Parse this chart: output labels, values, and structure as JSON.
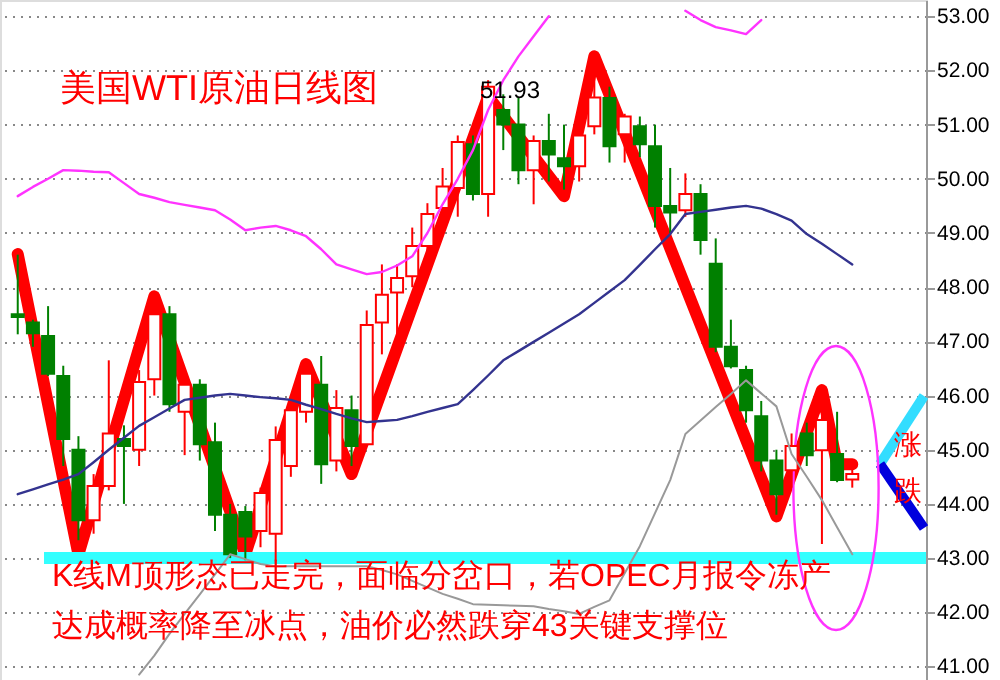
{
  "chart_data": {
    "type": "candlestick",
    "title": "美国WTI原油日线图",
    "categories": [
      null,
      null,
      null,
      null,
      null,
      null,
      null,
      null,
      null,
      null,
      null,
      null,
      null,
      null,
      null,
      null,
      null,
      null,
      null,
      null,
      null,
      null,
      null,
      null,
      null,
      null,
      null,
      null,
      null,
      null,
      null,
      null,
      null,
      null,
      null,
      null,
      null,
      null,
      null,
      null,
      null,
      null,
      null,
      null,
      null,
      null,
      null,
      null,
      null,
      null,
      null,
      null,
      null,
      null,
      null,
      null
    ],
    "ohlc": [
      [
        47.5,
        48.6,
        47.13,
        47.45
      ],
      [
        47.35,
        47.4,
        46.9,
        47.15
      ],
      [
        47.1,
        47.65,
        46.36,
        46.4
      ],
      [
        46.36,
        46.55,
        44.7,
        45.2
      ],
      [
        45.0,
        45.25,
        43.33,
        43.7
      ],
      [
        43.7,
        44.55,
        43.45,
        44.33
      ],
      [
        44.33,
        46.65,
        44.25,
        45.3
      ],
      [
        45.2,
        45.45,
        44.0,
        45.07
      ],
      [
        45.0,
        46.47,
        44.7,
        46.25
      ],
      [
        46.3,
        47.83,
        46.0,
        47.5
      ],
      [
        47.5,
        47.65,
        45.7,
        45.84
      ],
      [
        45.7,
        46.35,
        44.9,
        46.2
      ],
      [
        46.2,
        46.3,
        44.8,
        45.1
      ],
      [
        45.14,
        45.5,
        43.5,
        43.8
      ],
      [
        43.8,
        44.0,
        43.0,
        43.07
      ],
      [
        43.85,
        43.96,
        42.96,
        43.4
      ],
      [
        43.5,
        44.3,
        43.2,
        44.2
      ],
      [
        43.45,
        45.43,
        42.96,
        45.18
      ],
      [
        44.7,
        46.0,
        44.5,
        45.73
      ],
      [
        45.7,
        46.6,
        45.5,
        46.4
      ],
      [
        46.2,
        46.73,
        44.37,
        44.73
      ],
      [
        44.8,
        46.1,
        44.6,
        45.77
      ],
      [
        45.73,
        46.0,
        44.7,
        45.07
      ],
      [
        45.1,
        47.57,
        45.07,
        47.3
      ],
      [
        47.35,
        48.42,
        46.76,
        47.86
      ],
      [
        47.9,
        48.42,
        47.0,
        48.17
      ],
      [
        48.2,
        49.1,
        48.0,
        48.76
      ],
      [
        48.76,
        49.55,
        48.3,
        49.35
      ],
      [
        49.46,
        50.2,
        49.2,
        49.86
      ],
      [
        49.83,
        50.8,
        49.3,
        50.68
      ],
      [
        50.64,
        50.8,
        49.6,
        49.72
      ],
      [
        49.72,
        51.82,
        49.3,
        51.7
      ],
      [
        51.27,
        51.56,
        50.53,
        51.0
      ],
      [
        51.0,
        51.5,
        49.9,
        50.16
      ],
      [
        50.16,
        50.8,
        49.53,
        50.7
      ],
      [
        50.7,
        51.2,
        49.95,
        50.45
      ],
      [
        50.38,
        51.0,
        49.8,
        50.23
      ],
      [
        50.23,
        51.2,
        49.95,
        50.8
      ],
      [
        50.97,
        51.93,
        50.82,
        51.5
      ],
      [
        51.49,
        51.7,
        50.3,
        50.6
      ],
      [
        50.82,
        51.2,
        50.3,
        51.15
      ],
      [
        50.97,
        51.15,
        50.4,
        50.64
      ],
      [
        50.6,
        51.0,
        49.1,
        49.5
      ],
      [
        49.5,
        50.2,
        49.0,
        49.38
      ],
      [
        49.42,
        50.1,
        49.3,
        49.72
      ],
      [
        49.72,
        49.9,
        48.6,
        48.87
      ],
      [
        48.43,
        48.9,
        46.8,
        46.9
      ],
      [
        46.9,
        47.4,
        46.5,
        46.54
      ],
      [
        46.47,
        46.55,
        45.5,
        45.73
      ],
      [
        45.62,
        45.9,
        44.6,
        44.8
      ],
      [
        44.8,
        45.0,
        43.8,
        44.18
      ],
      [
        44.62,
        45.3,
        44.3,
        45.07
      ],
      [
        45.3,
        45.5,
        44.7,
        44.9
      ],
      [
        44.99,
        46.0,
        43.26,
        45.55
      ],
      [
        44.92,
        45.7,
        44.4,
        44.44
      ],
      [
        44.45,
        44.7,
        44.3,
        44.55
      ]
    ],
    "colors": [
      "#008000",
      "#008000",
      "#008000",
      "#008000",
      "#008000",
      "#ff0000",
      "#ff0000",
      "#008000",
      "#ff0000",
      "#ff0000",
      "#008000",
      "#ff0000",
      "#008000",
      "#008000",
      "#008000",
      "#008000",
      "#ff0000",
      "#ff0000",
      "#ff0000",
      "#ff0000",
      "#008000",
      "#ff0000",
      "#008000",
      "#ff0000",
      "#ff0000",
      "#ff0000",
      "#ff0000",
      "#ff0000",
      "#ff0000",
      "#ff0000",
      "#008000",
      "#ff0000",
      "#008000",
      "#008000",
      "#ff0000",
      "#008000",
      "#008000",
      "#ff0000",
      "#ff0000",
      "#008000",
      "#ff0000",
      "#008000",
      "#008000",
      "#008000",
      "#ff0000",
      "#008000",
      "#008000",
      "#008000",
      "#008000",
      "#008000",
      "#008000",
      "#ff0000",
      "#008000",
      "#ff0000",
      "#008000",
      "#ff0000"
    ],
    "series": [
      {
        "type": "line",
        "color": "#ff33ff",
        "values": [
          49.68,
          49.85,
          50.0,
          50.16,
          50.15,
          50.13,
          50.12,
          49.92,
          49.72,
          49.65,
          49.57,
          49.52,
          49.47,
          49.42,
          49.25,
          49.05,
          49.1,
          49.13,
          49.05,
          48.94,
          48.7,
          48.42,
          48.33,
          48.24,
          48.28,
          48.4,
          48.57,
          49.0,
          49.53,
          50.0,
          50.53,
          51.27,
          51.82,
          52.26,
          52.63,
          53.0,
          null,
          null,
          null,
          null,
          null,
          null,
          null,
          null,
          53.1,
          52.93,
          52.8,
          52.74,
          52.67,
          52.93,
          null,
          null,
          null,
          null,
          null,
          null
        ]
      },
      {
        "type": "line",
        "color": "#33338f",
        "values": [
          44.18,
          44.27,
          44.36,
          44.45,
          44.55,
          44.77,
          45.0,
          45.22,
          45.44,
          45.6,
          45.76,
          45.92,
          45.96,
          46.0,
          46.03,
          46.0,
          45.97,
          45.95,
          45.92,
          45.83,
          45.75,
          45.66,
          45.58,
          45.51,
          45.53,
          45.55,
          45.62,
          45.7,
          45.77,
          45.84,
          46.1,
          46.37,
          46.65,
          46.82,
          46.99,
          47.16,
          47.33,
          47.5,
          47.71,
          47.92,
          48.13,
          48.41,
          48.7,
          48.98,
          49.35,
          49.39,
          49.43,
          49.47,
          49.5,
          49.45,
          49.35,
          49.23,
          48.98,
          48.8,
          48.61,
          48.42
        ]
      },
      {
        "type": "line",
        "color": "#999999",
        "values": [
          null,
          null,
          null,
          null,
          null,
          null,
          null,
          null,
          40.85,
          41.2,
          41.6,
          41.97,
          42.33,
          42.7,
          43.07,
          42.98,
          42.89,
          42.85,
          42.85,
          42.85,
          42.85,
          42.85,
          42.85,
          42.85,
          42.78,
          42.7,
          42.58,
          42.46,
          42.34,
          42.25,
          42.15,
          42.14,
          42.13,
          42.12,
          42.11,
          42.06,
          42.02,
          41.97,
          42.1,
          42.22,
          42.72,
          43.22,
          43.83,
          44.44,
          45.29,
          45.54,
          45.79,
          46.03,
          46.28,
          46.04,
          45.8,
          44.92,
          44.5,
          44.07,
          43.57,
          43.07
        ]
      },
      {
        "type": "line",
        "color": "#ff0000",
        "values": [
          48.61,
          null,
          null,
          null,
          43.07,
          null,
          null,
          null,
          null,
          47.83,
          null,
          null,
          null,
          null,
          null,
          43.07,
          null,
          null,
          null,
          46.58,
          null,
          null,
          44.55,
          null,
          null,
          null,
          null,
          null,
          null,
          null,
          null,
          51.52,
          null,
          null,
          null,
          null,
          49.68,
          null,
          52.26,
          null,
          null,
          null,
          null,
          null,
          null,
          null,
          null,
          null,
          null,
          null,
          43.77,
          null,
          null,
          46.1,
          44.73,
          44.73
        ]
      }
    ],
    "ylim": [
      40.75,
      53.3
    ],
    "yticks": [
      {
        "value": 41,
        "label": "41.00"
      },
      {
        "value": 42,
        "label": "42.00"
      },
      {
        "value": 43,
        "label": "43.00"
      },
      {
        "value": 44,
        "label": "44.00"
      },
      {
        "value": 45,
        "label": "45.00"
      },
      {
        "value": 46,
        "label": "46.00"
      },
      {
        "value": 47,
        "label": "47.00"
      },
      {
        "value": 48,
        "label": "48.00"
      },
      {
        "value": 49,
        "label": "49.00"
      },
      {
        "value": 50,
        "label": "50.00"
      },
      {
        "value": 51,
        "label": "51.00"
      },
      {
        "value": 52,
        "label": "52.00"
      },
      {
        "value": 53,
        "label": "53.00"
      }
    ],
    "grid": "y",
    "tick_labels": "y",
    "ref_lines": [
      {
        "axis": "y",
        "value": 43,
        "color": "#33ffff"
      }
    ],
    "annotations": [
      {
        "text": "51.93",
        "y": 51.93
      },
      "涨",
      "跌",
      "K线M顶形态已走完，面临分岔口，若OPEC月报令冻产",
      "达成概率降至冰点，油价必然跌穿43关键支撑位"
    ]
  }
}
